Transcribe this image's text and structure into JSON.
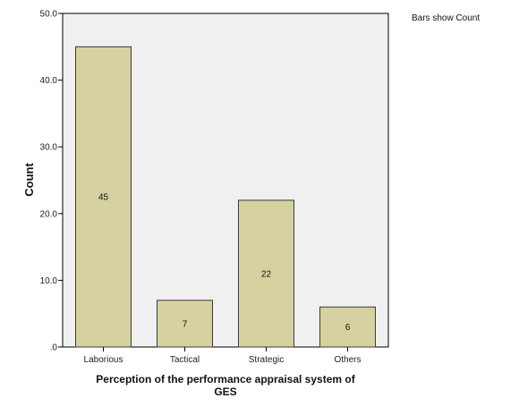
{
  "chart_data": {
    "type": "bar",
    "categories": [
      "Laborious",
      "Tactical",
      "Strategic",
      "Others"
    ],
    "values": [
      45,
      7,
      22,
      6
    ],
    "xlabel_lines": [
      "Perception of the performance appraisal system of",
      "GES"
    ],
    "ylabel": "Count",
    "ylim": [
      0,
      50
    ],
    "yticks": [
      0,
      10,
      20,
      30,
      40,
      50
    ],
    "ytick_labels": [
      ".0",
      "10.0",
      "20.0",
      "30.0",
      "40.0",
      "50.0"
    ],
    "data_labels": [
      "45",
      "7",
      "22",
      "6"
    ],
    "annotation": "Bars show Count",
    "grid": false,
    "legend": "none",
    "colors": {
      "bar_fill": "#d6d1a0",
      "bar_stroke": "#3a3a3a",
      "plot_bg": "#f0f0f0",
      "axis": "#000000"
    }
  }
}
